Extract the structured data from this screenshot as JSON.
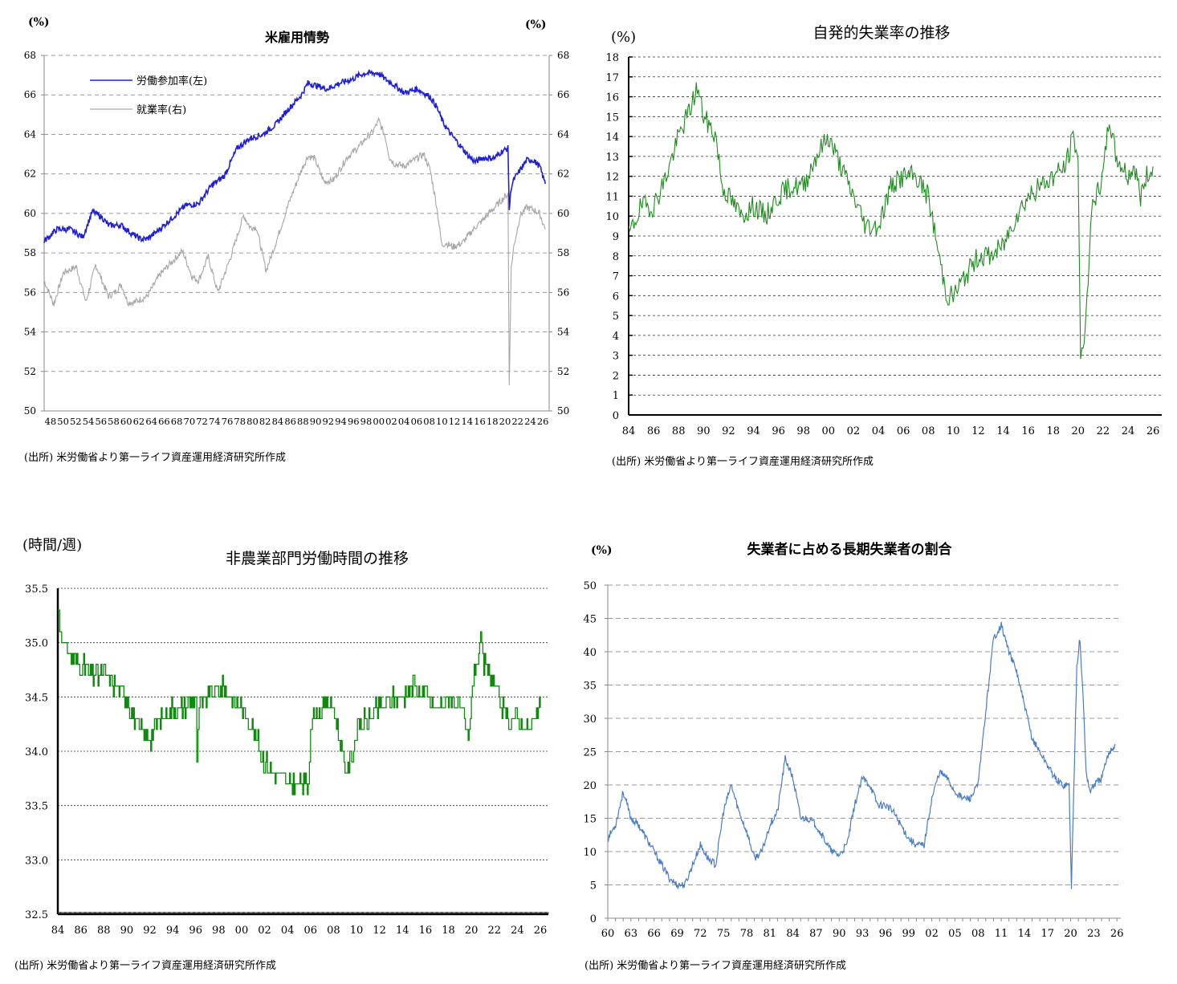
{
  "source_note": "(出所) 米労働省より第一ライフ資産運用経済研究所作成",
  "chart_data": [
    {
      "type": "line",
      "title": "米雇用情勢",
      "unit_left": "(%)",
      "unit_right": "(%)",
      "ylim_left": [
        50,
        68
      ],
      "ylim_right": [
        50,
        68
      ],
      "ticks_left": [
        "50",
        "52",
        "54",
        "56",
        "58",
        "60",
        "62",
        "64",
        "66",
        "68"
      ],
      "ticks_right": [
        "50",
        "52",
        "54",
        "56",
        "58",
        "60",
        "62",
        "64",
        "66",
        "68"
      ],
      "x_tick_labels": [
        "48",
        "50",
        "52",
        "54",
        "56",
        "58",
        "60",
        "62",
        "64",
        "66",
        "68",
        "70",
        "72",
        "74",
        "76",
        "78",
        "80",
        "82",
        "84",
        "86",
        "88",
        "90",
        "92",
        "94",
        "96",
        "98",
        "00",
        "02",
        "04",
        "06",
        "08",
        "10",
        "12",
        "14",
        "16",
        "18",
        "20",
        "22",
        "24",
        "26"
      ],
      "legend": [
        "労働参加率(左)",
        "就業率(右)"
      ],
      "grid": true,
      "colors": {
        "participation": "#1f1fd6",
        "employment": "#a6a6a6"
      },
      "series": [
        {
          "name": "労働参加率(左)",
          "axis": "left",
          "x": [
            1948,
            1950,
            1952,
            1954,
            1955.5,
            1957,
            1958,
            1960,
            1961.5,
            1963,
            1964,
            1966,
            1968,
            1970,
            1972,
            1974,
            1976,
            1978,
            1980,
            1982,
            1984,
            1986,
            1988,
            1989,
            1990,
            1992,
            1994,
            1996,
            1997,
            1998,
            2000,
            2001,
            2002,
            2004,
            2006,
            2007,
            2008,
            2009,
            2010,
            2011,
            2012,
            2013,
            2014,
            2015,
            2016,
            2018,
            2019,
            2020.1,
            2020.3,
            2020.6,
            2021,
            2022,
            2023,
            2024,
            2025,
            2025.9
          ],
          "values": [
            58.6,
            59.2,
            59.2,
            58.8,
            60.1,
            59.8,
            59.4,
            59.4,
            59.0,
            58.7,
            58.7,
            59.2,
            59.8,
            60.4,
            60.5,
            61.4,
            61.9,
            63.3,
            63.8,
            64.0,
            64.5,
            65.3,
            66.0,
            66.6,
            66.5,
            66.3,
            66.6,
            66.8,
            67.0,
            67.1,
            67.1,
            66.8,
            66.6,
            66.1,
            66.3,
            66.1,
            65.9,
            65.4,
            64.6,
            64.1,
            63.7,
            63.3,
            62.9,
            62.6,
            62.8,
            62.8,
            63.1,
            63.3,
            60.2,
            61.3,
            61.7,
            62.2,
            62.7,
            62.7,
            62.4,
            61.5
          ]
        },
        {
          "name": "就業率(右)",
          "axis": "right",
          "x": [
            1948,
            1949.5,
            1951,
            1953,
            1954.5,
            1956,
            1958,
            1959,
            1960,
            1961,
            1962,
            1964,
            1966,
            1968,
            1969.5,
            1971,
            1972,
            1973.5,
            1975,
            1977,
            1979,
            1980,
            1981,
            1982.5,
            1984,
            1986,
            1988,
            1989,
            1990,
            1991.5,
            1993,
            1995,
            1997,
            1998,
            1999,
            2000,
            2001,
            2001.7,
            2002.5,
            2004,
            2006,
            2007,
            2008,
            2009,
            2009.8,
            2010.5,
            2011.5,
            2013,
            2015,
            2016,
            2018,
            2019.5,
            2020.1,
            2020.3,
            2020.6,
            2021,
            2022,
            2023,
            2024,
            2025,
            2025.9
          ],
          "values": [
            56.6,
            55.4,
            57.0,
            57.3,
            55.5,
            57.4,
            55.8,
            56.0,
            56.4,
            55.5,
            55.5,
            55.8,
            56.9,
            57.6,
            58.1,
            56.8,
            56.6,
            57.8,
            56.0,
            57.8,
            59.9,
            59.3,
            59.3,
            57.1,
            58.5,
            60.5,
            62.2,
            62.9,
            62.8,
            61.6,
            61.7,
            62.8,
            63.4,
            63.8,
            64.1,
            64.7,
            63.9,
            62.8,
            62.5,
            62.4,
            62.8,
            63.0,
            62.2,
            60.4,
            58.4,
            58.5,
            58.3,
            58.5,
            59.3,
            59.6,
            60.3,
            60.8,
            61.0,
            51.3,
            57.2,
            58.3,
            59.9,
            60.3,
            60.2,
            60.0,
            59.2
          ]
        }
      ]
    },
    {
      "type": "line",
      "title": "自発的失業率の推移",
      "unit_left": "(%)",
      "ylim": [
        0,
        18
      ],
      "yticks": [
        "0",
        "1",
        "2",
        "3",
        "4",
        "5",
        "6",
        "7",
        "8",
        "9",
        "10",
        "11",
        "12",
        "13",
        "14",
        "15",
        "16",
        "17",
        "18"
      ],
      "x_tick_labels": [
        "84",
        "86",
        "88",
        "90",
        "92",
        "94",
        "96",
        "98",
        "00",
        "02",
        "04",
        "06",
        "08",
        "10",
        "12",
        "14",
        "16",
        "18",
        "20",
        "22",
        "24",
        "26"
      ],
      "grid": true,
      "colors": {
        "line": "#1e8c1e"
      },
      "series": [
        {
          "x": [
            1984,
            1985,
            1986,
            1987,
            1988,
            1989,
            1989.5,
            1990,
            1991,
            1991.5,
            1992,
            1993,
            1994,
            1995,
            1996,
            1997,
            1998,
            1999,
            2000,
            2001,
            2002,
            2003,
            2004,
            2005,
            2006,
            2007,
            2008,
            2009,
            2009.5,
            2010,
            2011,
            2012,
            2013,
            2014,
            2015,
            2016,
            2017,
            2018,
            2019,
            2019.6,
            2020,
            2020.2,
            2020.4,
            2020.8,
            2021,
            2022,
            2022.5,
            2023,
            2024,
            2024.5,
            2025,
            2025.5,
            2026
          ],
          "values": [
            9.0,
            10.5,
            10.5,
            12.0,
            14.0,
            15.5,
            16.5,
            15.0,
            14.0,
            11.5,
            11.0,
            10.0,
            10.5,
            10.0,
            11.0,
            11.5,
            11.5,
            13.0,
            14.0,
            12.5,
            11.0,
            9.5,
            9.5,
            11.5,
            12.0,
            12.0,
            11.0,
            7.5,
            6.0,
            6.0,
            7.0,
            8.0,
            8.0,
            8.5,
            10.0,
            11.0,
            11.5,
            12.0,
            12.5,
            14.0,
            13.0,
            2.5,
            3.5,
            6.5,
            10.0,
            12.0,
            15.0,
            13.0,
            12.0,
            12.5,
            11.0,
            12.0,
            12.5
          ]
        }
      ]
    },
    {
      "type": "line",
      "title": "非農業部門労働時間の推移",
      "unit_left": "(時間/週)",
      "ylim": [
        32.5,
        35.5
      ],
      "yticks": [
        "32.5",
        "33.0",
        "33.5",
        "34.0",
        "34.5",
        "35.0",
        "35.5"
      ],
      "x_tick_labels": [
        "84",
        "86",
        "88",
        "90",
        "92",
        "94",
        "96",
        "98",
        "00",
        "02",
        "04",
        "06",
        "08",
        "10",
        "12",
        "14",
        "16",
        "18",
        "20",
        "22",
        "24",
        "26"
      ],
      "grid": true,
      "colors": {
        "line": "#0f8a0f"
      },
      "series": [
        {
          "x": [
            1984,
            1984.5,
            1985,
            1986,
            1987,
            1988,
            1989,
            1990,
            1991,
            1992,
            1993,
            1994,
            1995,
            1996,
            1996.1,
            1996.3,
            1997,
            1998,
            1999,
            2000,
            2001,
            2002,
            2003,
            2004,
            2005,
            2005.8,
            2006,
            2007,
            2008,
            2008.5,
            2009,
            2009.5,
            2010,
            2011,
            2012,
            2013,
            2014,
            2015,
            2016,
            2017,
            2018,
            2019,
            2019.8,
            2020,
            2020.4,
            2020.8,
            2021,
            2022,
            2023,
            2024,
            2025,
            2026
          ],
          "values": [
            35.3,
            35.0,
            34.9,
            34.8,
            34.7,
            34.7,
            34.6,
            34.5,
            34.2,
            34.1,
            34.3,
            34.4,
            34.4,
            34.5,
            33.8,
            34.4,
            34.5,
            34.6,
            34.5,
            34.4,
            34.2,
            33.9,
            33.8,
            33.7,
            33.7,
            33.7,
            34.3,
            34.4,
            34.4,
            34.1,
            33.8,
            33.9,
            34.2,
            34.3,
            34.4,
            34.5,
            34.5,
            34.6,
            34.5,
            34.4,
            34.5,
            34.4,
            34.1,
            34.6,
            34.8,
            35.0,
            34.8,
            34.6,
            34.3,
            34.3,
            34.2,
            34.4
          ]
        }
      ]
    },
    {
      "type": "line",
      "title": "失業者に占める長期失業者の割合",
      "unit_left": "(%)",
      "ylim": [
        0,
        50
      ],
      "yticks": [
        "0",
        "5",
        "10",
        "15",
        "20",
        "25",
        "30",
        "35",
        "40",
        "45",
        "50"
      ],
      "x_tick_labels": [
        "60",
        "63",
        "66",
        "69",
        "72",
        "75",
        "78",
        "81",
        "84",
        "87",
        "90",
        "93",
        "96",
        "99",
        "02",
        "05",
        "08",
        "11",
        "14",
        "17",
        "20",
        "23",
        "26"
      ],
      "grid": true,
      "colors": {
        "line": "#4a7cc7"
      },
      "series": [
        {
          "x": [
            1960,
            1961,
            1962,
            1963,
            1964,
            1965,
            1966,
            1967,
            1968,
            1969,
            1970,
            1971,
            1972,
            1973,
            1974,
            1975,
            1976,
            1977,
            1978,
            1979,
            1980,
            1981,
            1982,
            1983,
            1984,
            1985,
            1986,
            1987,
            1988,
            1989,
            1990,
            1991,
            1992,
            1993,
            1994,
            1995,
            1996,
            1997,
            1998,
            1999,
            2000,
            2001,
            2002,
            2003,
            2004,
            2005,
            2006,
            2007,
            2008,
            2009,
            2010,
            2011,
            2012,
            2013,
            2014,
            2015,
            2016,
            2017,
            2018,
            2019,
            2019.8,
            2020.1,
            2020.4,
            2020.8,
            2021.2,
            2021.7,
            2022,
            2022.5,
            2023,
            2024,
            2025,
            2025.8
          ],
          "values": [
            12.0,
            14.0,
            19.0,
            15.0,
            14.0,
            12.0,
            10.0,
            8.0,
            6.0,
            5.0,
            5.0,
            8.0,
            11.0,
            9.0,
            8.0,
            16.0,
            20.0,
            16.0,
            13.0,
            9.0,
            10.0,
            14.0,
            16.0,
            24.0,
            21.0,
            15.0,
            15.0,
            14.0,
            12.0,
            10.0,
            9.5,
            11.0,
            17.0,
            21.0,
            20.0,
            17.0,
            17.0,
            16.0,
            14.0,
            12.0,
            11.0,
            11.0,
            18.0,
            22.0,
            21.0,
            19.0,
            18.0,
            18.0,
            20.0,
            31.0,
            42.0,
            44.0,
            40.0,
            37.0,
            32.0,
            27.0,
            25.0,
            23.0,
            21.0,
            20.0,
            20.0,
            4.5,
            19.0,
            38.0,
            42.0,
            31.0,
            22.0,
            19.0,
            20.0,
            21.0,
            25.0,
            26.0
          ]
        }
      ]
    }
  ]
}
